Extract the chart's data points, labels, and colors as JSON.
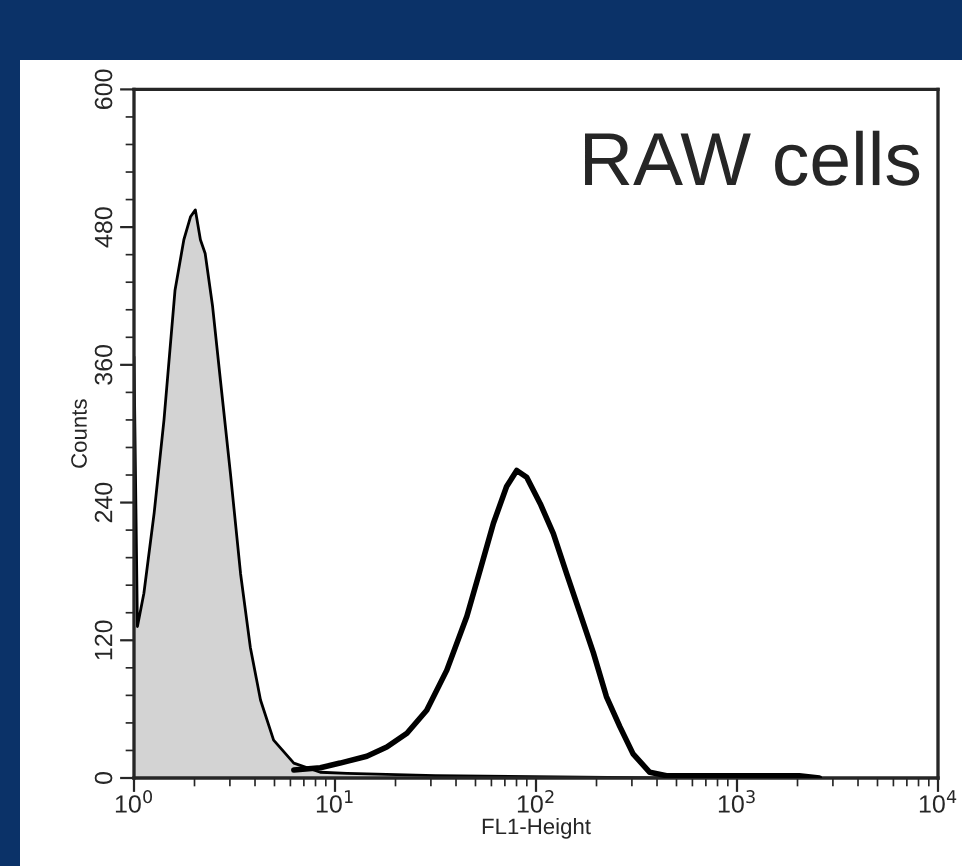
{
  "chart_data": {
    "type": "area",
    "xlabel": "FL1-Height",
    "ylabel": "Counts",
    "log": "x",
    "xlim": [
      1,
      10000
    ],
    "ylim": [
      0,
      600
    ],
    "xticks": [
      {
        "value": 1,
        "label": "10$^{0}$"
      },
      {
        "value": 10,
        "label": "10$^{1}$"
      },
      {
        "value": 100,
        "label": "10$^{2}$"
      },
      {
        "value": 1000,
        "label": "10$^{3}$"
      },
      {
        "value": 10000,
        "label": "10$^{4}$"
      }
    ],
    "yticks": [
      0,
      120,
      240,
      360,
      480,
      600
    ],
    "grid": false,
    "legend": false,
    "annotations": [
      "RAW cells"
    ],
    "series": [
      {
        "color": "#d3d3d3",
        "x": [
          1,
          1.04,
          1.12,
          1.26,
          1.41,
          1.6,
          1.77,
          1.91,
          2.02,
          2.14,
          2.26,
          2.46,
          2.69,
          3.02,
          3.39,
          3.79,
          4.26,
          4.95,
          6.24,
          8.45,
          11.5,
          31.6,
          400
        ],
        "values": [
          367,
          132,
          161,
          231,
          312,
          425,
          469,
          489,
          495,
          469,
          457,
          411,
          347,
          265,
          178,
          114,
          68,
          33,
          13,
          5,
          4,
          2,
          0
        ]
      },
      {
        "type": "line",
        "color": "#000000",
        "x": [
          6.24,
          8.45,
          10.6,
          14.4,
          18.1,
          22.8,
          28.6,
          36.0,
          45.3,
          52.7,
          61.4,
          71.4,
          80.2,
          89.9,
          105,
          122,
          142,
          166,
          193,
          224,
          261,
          304,
          368,
          446,
          955,
          2040,
          2570
        ],
        "values": [
          7,
          9,
          13,
          19,
          27,
          39,
          59,
          94,
          141,
          181,
          222,
          254,
          268,
          262,
          239,
          213,
          178,
          143,
          109,
          71,
          45,
          21,
          5,
          2,
          2,
          2,
          0
        ]
      }
    ]
  }
}
